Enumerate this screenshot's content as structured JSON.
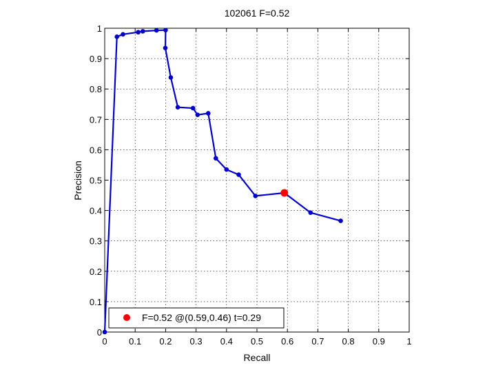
{
  "chart_data": {
    "type": "line",
    "title": "102061 F=0.52",
    "xlabel": "Recall",
    "ylabel": "Precision",
    "xlim": [
      0,
      1
    ],
    "ylim": [
      0,
      1
    ],
    "grid": true,
    "xticks": [
      0,
      0.1,
      0.2,
      0.3,
      0.4,
      0.5,
      0.6,
      0.7,
      0.8,
      0.9,
      1
    ],
    "yticks": [
      0,
      0.1,
      0.2,
      0.3,
      0.4,
      0.5,
      0.6,
      0.7,
      0.8,
      0.9,
      1
    ],
    "xtick_labels": [
      "0",
      "0.1",
      "0.2",
      "0.3",
      "0.4",
      "0.5",
      "0.6",
      "0.7",
      "0.8",
      "0.9",
      "1"
    ],
    "ytick_labels": [
      "0",
      "0.1",
      "0.2",
      "0.3",
      "0.4",
      "0.5",
      "0.6",
      "0.7",
      "0.8",
      "0.9",
      "1"
    ],
    "series": [
      {
        "color": "#0000cc",
        "points": [
          [
            0.0,
            0.0
          ],
          [
            0.04,
            0.972
          ],
          [
            0.06,
            0.98
          ],
          [
            0.11,
            0.987
          ],
          [
            0.125,
            0.99
          ],
          [
            0.17,
            0.993
          ],
          [
            0.2,
            0.994
          ],
          [
            0.199,
            0.935
          ],
          [
            0.217,
            0.838
          ],
          [
            0.24,
            0.74
          ],
          [
            0.29,
            0.737
          ],
          [
            0.305,
            0.715
          ],
          [
            0.34,
            0.72
          ],
          [
            0.365,
            0.572
          ],
          [
            0.4,
            0.535
          ],
          [
            0.44,
            0.518
          ],
          [
            0.495,
            0.448
          ],
          [
            0.59,
            0.458
          ],
          [
            0.676,
            0.393
          ],
          [
            0.775,
            0.366
          ]
        ]
      }
    ],
    "highlight": {
      "x": 0.59,
      "y": 0.458,
      "color": "#ff0000"
    },
    "legend": {
      "label": "F=0.52 @(0.59,0.46) t=0.29",
      "position": "bottom-left"
    }
  }
}
